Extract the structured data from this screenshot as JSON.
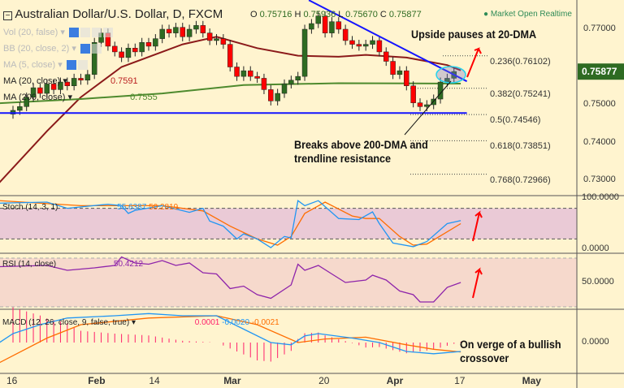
{
  "header": {
    "title": "Australian Dollar/U.S. Dollar, D, FXCM",
    "o_label": "O",
    "o": "0.75716",
    "h_label": "H",
    "h": "0.75936",
    "l_label": "L",
    "l": "0.75670",
    "c_label": "C",
    "c": "0.75877",
    "market_status": "Market Open",
    "realtime": "Realtime"
  },
  "studies": {
    "vol": "Vol (20, false)",
    "bb": "BB (20, close, 2)",
    "ma5": "MA (5, close)",
    "ma20": "MA (20, close)",
    "ma20_value": "0.7591",
    "ma200": "MA (200, close)",
    "ma200_value": "0.7555"
  },
  "annotations": {
    "upside": "Upside pauses at 20-DMA",
    "breaks_1": "Breaks above 200-DMA and",
    "breaks_2": "trendline resistance",
    "macd_1": "On verge of a bullish",
    "macd_2": "crossover"
  },
  "colors": {
    "up": "#2e6b22",
    "down": "#ff0000",
    "ma20": "#8b1a1a",
    "ma200": "#4e8a2e",
    "trendline": "#1515ff",
    "stoch_k": "#2196f3",
    "stoch_d": "#ff6d00",
    "rsi": "#8e24aa",
    "macd_hist": "#ff1f6b",
    "price_tag": "#2e6b22"
  },
  "chart_data": [
    {
      "type": "candlestick",
      "title": "Australian Dollar/U.S. Dollar, D, FXCM",
      "ylim": [
        0.725,
        0.778
      ],
      "y_ticks": [
        "0.77000",
        "0.75000",
        "0.74000",
        "0.73000"
      ],
      "y_tick_values": [
        0.77,
        0.75,
        0.74,
        0.73
      ],
      "last_price": "0.75877",
      "closes": [
        0.7485,
        0.7495,
        0.752,
        0.7545,
        0.753,
        0.7555,
        0.754,
        0.756,
        0.755,
        0.757,
        0.7565,
        0.758,
        0.7665,
        0.769,
        0.7655,
        0.764,
        0.7625,
        0.765,
        0.764,
        0.7665,
        0.7655,
        0.7675,
        0.77,
        0.769,
        0.7705,
        0.768,
        0.77,
        0.771,
        0.769,
        0.767,
        0.7675,
        0.766,
        0.76,
        0.7575,
        0.759,
        0.7575,
        0.757,
        0.754,
        0.751,
        0.753,
        0.7555,
        0.7565,
        0.7575,
        0.77,
        0.7715,
        0.7735,
        0.769,
        0.772,
        0.77,
        0.767,
        0.766,
        0.7655,
        0.766,
        0.767,
        0.764,
        0.7615,
        0.758,
        0.759,
        0.755,
        0.7505,
        0.7495,
        0.75,
        0.7515,
        0.756,
        0.757,
        0.7588
      ],
      "ma20": [
        [
          -2,
          0.7294
        ],
        [
          5,
          0.743
        ],
        [
          10,
          0.752
        ],
        [
          16,
          0.76
        ],
        [
          25,
          0.766
        ],
        [
          30,
          0.768
        ],
        [
          36,
          0.765
        ],
        [
          42,
          0.763
        ],
        [
          48,
          0.7627
        ],
        [
          52,
          0.7632
        ],
        [
          58,
          0.7625
        ],
        [
          64,
          0.7605
        ],
        [
          66,
          0.7591
        ]
      ],
      "ma200": [
        [
          -2,
          0.7504
        ],
        [
          10,
          0.7515
        ],
        [
          22,
          0.753
        ],
        [
          34,
          0.7552
        ],
        [
          48,
          0.7557
        ],
        [
          66,
          0.7556
        ]
      ],
      "trendline": [
        [
          43.6,
          0.7777
        ],
        [
          66.9,
          0.7562
        ]
      ],
      "support": [
        [
          -2,
          0.7478
        ],
        [
          66.9,
          0.7478
        ]
      ],
      "fib": [
        {
          "label": "0.236(0.76102)",
          "value": 0.76102
        },
        {
          "label": "0.382(0.75241)",
          "value": 0.75241
        },
        {
          "label": "0.5(0.74546)",
          "value": 0.74546
        },
        {
          "label": "0.618(0.73851)",
          "value": 0.73851
        },
        {
          "label": "0.768(0.72966)",
          "value": 0.72966
        }
      ]
    },
    {
      "type": "line",
      "title": "Stoch (14, 3, 1)",
      "k_value": "55.6387",
      "d_value": "50.2819",
      "ylim": [
        0,
        100
      ],
      "y_ticks": [
        "100.0000",
        "0.0000"
      ],
      "bands": [
        80,
        20
      ],
      "k": [
        [
          -2,
          90
        ],
        [
          5,
          92
        ],
        [
          8,
          80
        ],
        [
          14,
          88
        ],
        [
          16,
          85
        ],
        [
          17,
          70
        ],
        [
          18,
          76
        ],
        [
          22,
          85
        ],
        [
          26,
          72
        ],
        [
          28,
          80
        ],
        [
          29,
          55
        ],
        [
          31,
          45
        ],
        [
          33,
          20
        ],
        [
          34,
          30
        ],
        [
          36,
          20
        ],
        [
          38,
          3
        ],
        [
          40,
          25
        ],
        [
          41,
          22
        ],
        [
          42,
          95
        ],
        [
          43,
          85
        ],
        [
          45,
          95
        ],
        [
          48,
          60
        ],
        [
          51,
          58
        ],
        [
          53,
          73
        ],
        [
          54,
          50
        ],
        [
          56,
          12
        ],
        [
          59,
          5
        ],
        [
          61,
          15
        ],
        [
          64,
          50
        ],
        [
          66,
          56
        ]
      ],
      "d": [
        [
          -2,
          95
        ],
        [
          10,
          85
        ],
        [
          16,
          85
        ],
        [
          22,
          85
        ],
        [
          28,
          75
        ],
        [
          32,
          45
        ],
        [
          36,
          20
        ],
        [
          39,
          8
        ],
        [
          41,
          25
        ],
        [
          43,
          70
        ],
        [
          46,
          92
        ],
        [
          50,
          65
        ],
        [
          52,
          60
        ],
        [
          54,
          60
        ],
        [
          57,
          25
        ],
        [
          59,
          8
        ],
        [
          61,
          10
        ],
        [
          66,
          50
        ]
      ]
    },
    {
      "type": "line",
      "title": "RSI (14, close)",
      "value": "50.4212",
      "ylim": [
        28,
        73
      ],
      "y_ticks": [
        "50.0000"
      ],
      "bands": [
        70,
        30
      ],
      "rsi": [
        [
          -2,
          63
        ],
        [
          5,
          64
        ],
        [
          8,
          60
        ],
        [
          12,
          62
        ],
        [
          15,
          64
        ],
        [
          16,
          71
        ],
        [
          18,
          66
        ],
        [
          20,
          65
        ],
        [
          22,
          68
        ],
        [
          24,
          64
        ],
        [
          26,
          66
        ],
        [
          28,
          58
        ],
        [
          30,
          57
        ],
        [
          32,
          45
        ],
        [
          34,
          47
        ],
        [
          36,
          40
        ],
        [
          38,
          37
        ],
        [
          41,
          48
        ],
        [
          42,
          65
        ],
        [
          43,
          60
        ],
        [
          45,
          64
        ],
        [
          47,
          57
        ],
        [
          49,
          50
        ],
        [
          52,
          52
        ],
        [
          53,
          56
        ],
        [
          55,
          52
        ],
        [
          57,
          43
        ],
        [
          59,
          40
        ],
        [
          60,
          34
        ],
        [
          62,
          34
        ],
        [
          64,
          46
        ],
        [
          66,
          50
        ]
      ]
    },
    {
      "type": "line",
      "title": "MACD (12, 26, close, 9, false, true)",
      "hist_value": "0.0001",
      "macd_value": "-0.0020",
      "signal_value": "-0.0021",
      "y_ticks": [
        "0.0000"
      ],
      "macd": [
        [
          -2,
          0.0
        ],
        [
          0,
          0.002
        ],
        [
          4,
          0.004
        ],
        [
          8,
          0.0055
        ],
        [
          15,
          0.006
        ],
        [
          20,
          0.0065
        ],
        [
          25,
          0.006
        ],
        [
          30,
          0.006
        ],
        [
          34,
          0.003
        ],
        [
          38,
          0.0
        ],
        [
          41,
          -0.0005
        ],
        [
          43,
          0.0015
        ],
        [
          45,
          0.002
        ],
        [
          50,
          0.001
        ],
        [
          54,
          0.0
        ],
        [
          58,
          -0.002
        ],
        [
          62,
          -0.0025
        ],
        [
          66,
          -0.002
        ]
      ],
      "signal": [
        [
          -2,
          -0.0045
        ],
        [
          5,
          0.001
        ],
        [
          10,
          0.004
        ],
        [
          20,
          0.0055
        ],
        [
          30,
          0.006
        ],
        [
          36,
          0.004
        ],
        [
          42,
          0.0
        ],
        [
          46,
          0.0008
        ],
        [
          52,
          0.0012
        ],
        [
          58,
          -0.0005
        ],
        [
          62,
          -0.0015
        ],
        [
          66,
          -0.0021
        ]
      ]
    }
  ],
  "x_axis": {
    "ticks": [
      {
        "label": "16",
        "i": 0
      },
      {
        "label": "Feb",
        "i": 12
      },
      {
        "label": "14",
        "i": 21
      },
      {
        "label": "Mar",
        "i": 32
      },
      {
        "label": "20",
        "i": 46
      },
      {
        "label": "Apr",
        "i": 56
      },
      {
        "label": "17",
        "i": 66
      },
      {
        "label": "May",
        "i": 76
      }
    ]
  }
}
